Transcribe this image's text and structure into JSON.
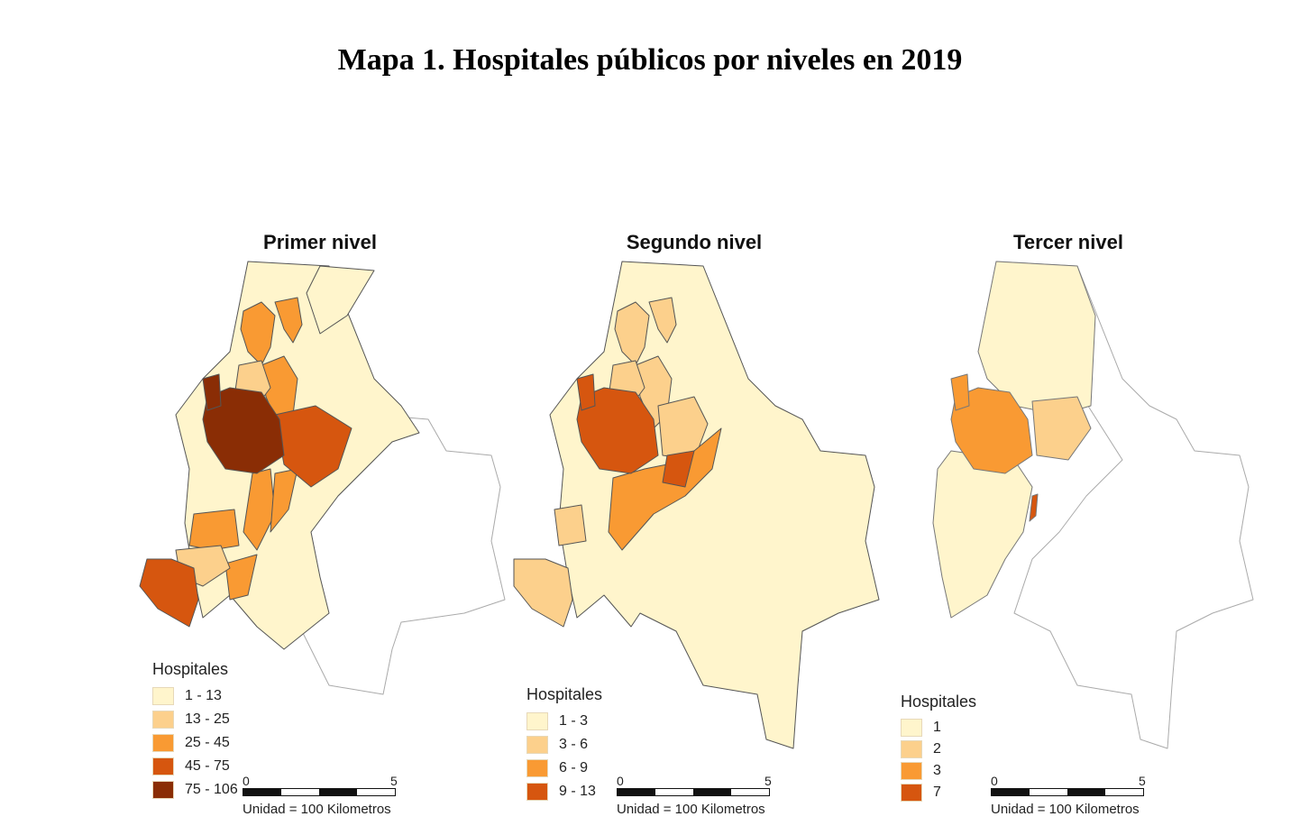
{
  "title": "Mapa 1. Hospitales públicos por niveles en 2019",
  "panels": [
    {
      "title": "Primer nivel",
      "legend_title": "Hospitales",
      "legend": [
        {
          "label": "1 - 13",
          "color": "#FFF5CC"
        },
        {
          "label": "13 - 25",
          "color": "#FCD08C"
        },
        {
          "label": "25 - 45",
          "color": "#F99A33"
        },
        {
          "label": "45 - 75",
          "color": "#D6560F"
        },
        {
          "label": "75 - 106",
          "color": "#8A2D05"
        }
      ],
      "scale": {
        "start": "0",
        "end": "5",
        "unit": "Unidad = 100 Kilometros"
      }
    },
    {
      "title": "Segundo nivel",
      "legend_title": "Hospitales",
      "legend": [
        {
          "label": "1 - 3",
          "color": "#FFF5CC"
        },
        {
          "label": "3 - 6",
          "color": "#FCD08C"
        },
        {
          "label": "6 - 9",
          "color": "#F99A33"
        },
        {
          "label": "9 - 13",
          "color": "#D6560F"
        }
      ],
      "scale": {
        "start": "0",
        "end": "5",
        "unit": "Unidad = 100 Kilometros"
      }
    },
    {
      "title": "Tercer nivel",
      "legend_title": "Hospitales",
      "legend": [
        {
          "label": "1",
          "color": "#FFF5CC"
        },
        {
          "label": "2",
          "color": "#FCD08C"
        },
        {
          "label": "3",
          "color": "#F99A33"
        },
        {
          "label": "7",
          "color": "#D6560F"
        }
      ],
      "scale": {
        "start": "0",
        "end": "5",
        "unit": "Unidad = 100 Kilometros"
      }
    }
  ]
}
